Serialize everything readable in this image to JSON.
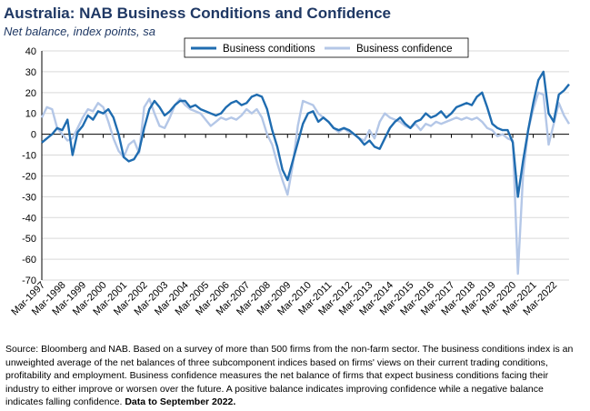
{
  "chart_data": {
    "type": "line",
    "title": "Australia: NAB Business Conditions and Confidence",
    "subtitle": "Net balance, index points, sa",
    "ylim": [
      -70,
      40
    ],
    "y_ticks": [
      40,
      30,
      20,
      10,
      0,
      -10,
      -20,
      -30,
      -40,
      -50,
      -60,
      -70
    ],
    "x_tick_labels": [
      "Mar-1997",
      "Mar-1998",
      "Mar-1999",
      "Mar-2000",
      "Mar-2001",
      "Mar-2002",
      "Mar-2003",
      "Mar-2004",
      "Mar-2005",
      "Mar-2006",
      "Mar-2007",
      "Mar-2008",
      "Mar-2009",
      "Mar-2010",
      "Mar-2011",
      "Mar-2012",
      "Mar-2013",
      "Mar-2014",
      "Mar-2015",
      "Mar-2016",
      "Mar-2017",
      "Mar-2018",
      "Mar-2019",
      "Mar-2020",
      "Mar-2021",
      "Mar-2022"
    ],
    "x_range": [
      1997.0,
      2022.75
    ],
    "legend_position": "top-center",
    "grid": "horizontal",
    "series": [
      {
        "name": "Business conditions",
        "color": "#1F6CB0",
        "points": [
          [
            1997.0,
            -4
          ],
          [
            1997.25,
            -2
          ],
          [
            1997.5,
            0
          ],
          [
            1997.75,
            3
          ],
          [
            1998.0,
            2
          ],
          [
            1998.25,
            7
          ],
          [
            1998.5,
            -10
          ],
          [
            1998.75,
            1
          ],
          [
            1999.0,
            4
          ],
          [
            1999.25,
            9
          ],
          [
            1999.5,
            7
          ],
          [
            1999.75,
            11
          ],
          [
            2000.0,
            10
          ],
          [
            2000.25,
            12
          ],
          [
            2000.5,
            8
          ],
          [
            2000.75,
            0
          ],
          [
            2001.0,
            -11
          ],
          [
            2001.25,
            -13
          ],
          [
            2001.5,
            -12
          ],
          [
            2001.75,
            -8
          ],
          [
            2002.0,
            3
          ],
          [
            2002.25,
            12
          ],
          [
            2002.5,
            16
          ],
          [
            2002.75,
            13
          ],
          [
            2003.0,
            9
          ],
          [
            2003.25,
            11
          ],
          [
            2003.5,
            14
          ],
          [
            2003.75,
            16
          ],
          [
            2004.0,
            16
          ],
          [
            2004.25,
            13
          ],
          [
            2004.5,
            14
          ],
          [
            2004.75,
            12
          ],
          [
            2005.0,
            11
          ],
          [
            2005.25,
            10
          ],
          [
            2005.5,
            9
          ],
          [
            2005.75,
            10
          ],
          [
            2006.0,
            13
          ],
          [
            2006.25,
            15
          ],
          [
            2006.5,
            16
          ],
          [
            2006.75,
            14
          ],
          [
            2007.0,
            15
          ],
          [
            2007.25,
            18
          ],
          [
            2007.5,
            19
          ],
          [
            2007.75,
            18
          ],
          [
            2008.0,
            12
          ],
          [
            2008.25,
            2
          ],
          [
            2008.5,
            -6
          ],
          [
            2008.75,
            -17
          ],
          [
            2009.0,
            -22
          ],
          [
            2009.25,
            -13
          ],
          [
            2009.5,
            -4
          ],
          [
            2009.75,
            5
          ],
          [
            2010.0,
            10
          ],
          [
            2010.25,
            11
          ],
          [
            2010.5,
            6
          ],
          [
            2010.75,
            8
          ],
          [
            2011.0,
            6
          ],
          [
            2011.25,
            3
          ],
          [
            2011.5,
            2
          ],
          [
            2011.75,
            3
          ],
          [
            2012.0,
            2
          ],
          [
            2012.25,
            0
          ],
          [
            2012.5,
            -2
          ],
          [
            2012.75,
            -5
          ],
          [
            2013.0,
            -3
          ],
          [
            2013.25,
            -6
          ],
          [
            2013.5,
            -7
          ],
          [
            2013.75,
            -2
          ],
          [
            2014.0,
            3
          ],
          [
            2014.25,
            6
          ],
          [
            2014.5,
            8
          ],
          [
            2014.75,
            5
          ],
          [
            2015.0,
            3
          ],
          [
            2015.25,
            6
          ],
          [
            2015.5,
            7
          ],
          [
            2015.75,
            10
          ],
          [
            2016.0,
            8
          ],
          [
            2016.25,
            9
          ],
          [
            2016.5,
            11
          ],
          [
            2016.75,
            8
          ],
          [
            2017.0,
            10
          ],
          [
            2017.25,
            13
          ],
          [
            2017.5,
            14
          ],
          [
            2017.75,
            15
          ],
          [
            2018.0,
            14
          ],
          [
            2018.25,
            18
          ],
          [
            2018.5,
            20
          ],
          [
            2018.75,
            13
          ],
          [
            2019.0,
            5
          ],
          [
            2019.25,
            3
          ],
          [
            2019.5,
            2
          ],
          [
            2019.75,
            2
          ],
          [
            2020.0,
            -4
          ],
          [
            2020.25,
            -30
          ],
          [
            2020.5,
            -13
          ],
          [
            2020.75,
            2
          ],
          [
            2021.0,
            15
          ],
          [
            2021.25,
            26
          ],
          [
            2021.5,
            30
          ],
          [
            2021.75,
            10
          ],
          [
            2022.0,
            6
          ],
          [
            2022.25,
            19
          ],
          [
            2022.5,
            21
          ],
          [
            2022.75,
            24
          ]
        ]
      },
      {
        "name": "Business confidence",
        "color": "#B4C7E7",
        "points": [
          [
            1997.0,
            8
          ],
          [
            1997.25,
            13
          ],
          [
            1997.5,
            12
          ],
          [
            1997.75,
            3
          ],
          [
            1998.0,
            0
          ],
          [
            1998.25,
            -3
          ],
          [
            1998.5,
            -2
          ],
          [
            1998.75,
            3
          ],
          [
            1999.0,
            8
          ],
          [
            1999.25,
            12
          ],
          [
            1999.5,
            11
          ],
          [
            1999.75,
            15
          ],
          [
            2000.0,
            13
          ],
          [
            2000.25,
            6
          ],
          [
            2000.5,
            -2
          ],
          [
            2000.75,
            -8
          ],
          [
            2001.0,
            -11
          ],
          [
            2001.25,
            -5
          ],
          [
            2001.5,
            -3
          ],
          [
            2001.75,
            -9
          ],
          [
            2002.0,
            13
          ],
          [
            2002.25,
            17
          ],
          [
            2002.5,
            10
          ],
          [
            2002.75,
            4
          ],
          [
            2003.0,
            3
          ],
          [
            2003.25,
            8
          ],
          [
            2003.5,
            14
          ],
          [
            2003.75,
            17
          ],
          [
            2004.0,
            14
          ],
          [
            2004.25,
            12
          ],
          [
            2004.5,
            11
          ],
          [
            2004.75,
            10
          ],
          [
            2005.0,
            7
          ],
          [
            2005.25,
            4
          ],
          [
            2005.5,
            6
          ],
          [
            2005.75,
            8
          ],
          [
            2006.0,
            7
          ],
          [
            2006.25,
            8
          ],
          [
            2006.5,
            7
          ],
          [
            2006.75,
            9
          ],
          [
            2007.0,
            12
          ],
          [
            2007.25,
            10
          ],
          [
            2007.5,
            12
          ],
          [
            2007.75,
            8
          ],
          [
            2008.0,
            0
          ],
          [
            2008.25,
            -5
          ],
          [
            2008.5,
            -14
          ],
          [
            2008.75,
            -22
          ],
          [
            2009.0,
            -29
          ],
          [
            2009.25,
            -15
          ],
          [
            2009.5,
            4
          ],
          [
            2009.75,
            16
          ],
          [
            2010.0,
            15
          ],
          [
            2010.25,
            14
          ],
          [
            2010.5,
            10
          ],
          [
            2010.75,
            8
          ],
          [
            2011.0,
            6
          ],
          [
            2011.25,
            3
          ],
          [
            2011.5,
            1
          ],
          [
            2011.75,
            3
          ],
          [
            2012.0,
            1
          ],
          [
            2012.25,
            0
          ],
          [
            2012.5,
            -2
          ],
          [
            2012.75,
            -3
          ],
          [
            2013.0,
            2
          ],
          [
            2013.25,
            -2
          ],
          [
            2013.5,
            6
          ],
          [
            2013.75,
            10
          ],
          [
            2014.0,
            8
          ],
          [
            2014.25,
            7
          ],
          [
            2014.5,
            6
          ],
          [
            2014.75,
            4
          ],
          [
            2015.0,
            3
          ],
          [
            2015.25,
            5
          ],
          [
            2015.5,
            2
          ],
          [
            2015.75,
            5
          ],
          [
            2016.0,
            4
          ],
          [
            2016.25,
            6
          ],
          [
            2016.5,
            5
          ],
          [
            2016.75,
            6
          ],
          [
            2017.0,
            7
          ],
          [
            2017.25,
            8
          ],
          [
            2017.5,
            7
          ],
          [
            2017.75,
            8
          ],
          [
            2018.0,
            7
          ],
          [
            2018.25,
            8
          ],
          [
            2018.5,
            6
          ],
          [
            2018.75,
            3
          ],
          [
            2019.0,
            2
          ],
          [
            2019.25,
            -1
          ],
          [
            2019.5,
            0
          ],
          [
            2019.75,
            -2
          ],
          [
            2020.0,
            -3
          ],
          [
            2020.25,
            -67
          ],
          [
            2020.5,
            -20
          ],
          [
            2020.75,
            2
          ],
          [
            2021.0,
            12
          ],
          [
            2021.25,
            20
          ],
          [
            2021.5,
            19
          ],
          [
            2021.75,
            -5
          ],
          [
            2022.0,
            5
          ],
          [
            2022.25,
            15
          ],
          [
            2022.5,
            9
          ],
          [
            2022.75,
            5
          ]
        ]
      }
    ]
  },
  "footer": {
    "source_text": "Source: Bloomberg and NAB. Based on a survey of more than 500 firms from the non-farm sector.  The business conditions index is an unweighted average of the net balances of three subcomponent indices based on firms' views on their current trading conditions, profitability and employment.  Business confidence measures the net balance of firms that expect business conditions facing their industry to either improve or worsen over the future.  A positive balance indicates improving confidence while a negative balance indicates falling confidence.",
    "data_note": "Data to September 2022."
  }
}
